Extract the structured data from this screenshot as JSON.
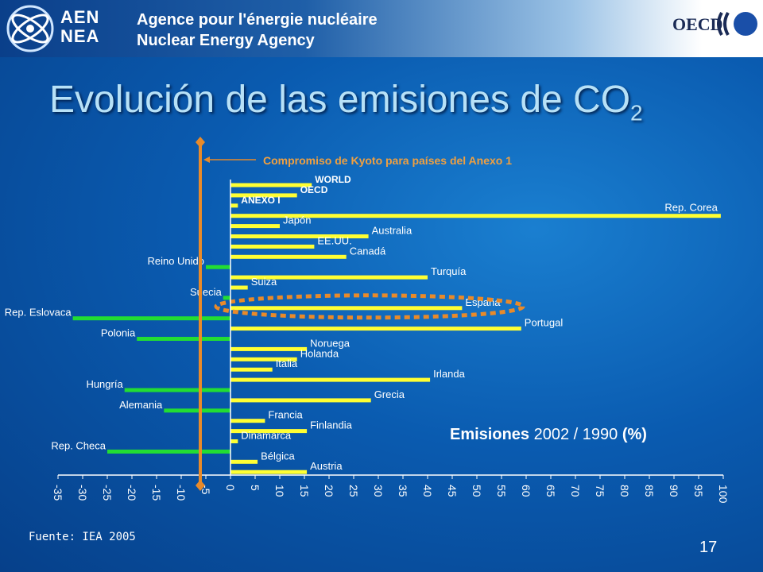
{
  "header": {
    "logo_text_line1": "AEN",
    "logo_text_line2": "NEA",
    "agency_fr": "Agence pour l'énergie nucléaire",
    "agency_en": "Nuclear Energy Agency",
    "oecd": "OECD"
  },
  "slide": {
    "title_main": "Evolución de las emisiones de CO",
    "title_sub": "2",
    "source": "Fuente: IEA 2005",
    "page_number": "17",
    "emissions_label_bold1": "Emisiones",
    "emissions_label_years": "2002 / 1990",
    "emissions_label_unit": "(%)"
  },
  "chart_data": {
    "type": "bar",
    "orientation": "horizontal",
    "annotation": "Compromiso de Kyoto para países del Anexo 1",
    "reference_line_value": -5,
    "xlim": [
      -35,
      100
    ],
    "ticks": [
      "-35",
      "-30",
      "-25",
      "-20",
      "-15",
      "-10",
      "-5",
      "0",
      "5",
      "10",
      "15",
      "20",
      "25",
      "30",
      "35",
      "40",
      "45",
      "50",
      "55",
      "60",
      "65",
      "70",
      "75",
      "80",
      "85",
      "90",
      "95",
      "100"
    ],
    "tick_values": [
      -35,
      -30,
      -25,
      -20,
      -15,
      -10,
      -5,
      0,
      5,
      10,
      15,
      20,
      25,
      30,
      35,
      40,
      45,
      50,
      55,
      60,
      65,
      70,
      75,
      80,
      85,
      90,
      95,
      100
    ],
    "highlighted_category": "España",
    "bars": [
      {
        "label": "WORLD",
        "value": 16.5
      },
      {
        "label": "OECD",
        "value": 13.5
      },
      {
        "label": "ANEXO I",
        "value": 1.5
      },
      {
        "label": "Rep. Corea",
        "value": 99.5
      },
      {
        "label": "Japón",
        "value": 10
      },
      {
        "label": "Australia",
        "value": 28
      },
      {
        "label": "EE.UU.",
        "value": 17
      },
      {
        "label": "Canadá",
        "value": 23.5
      },
      {
        "label": "Reino Unido",
        "value": -5
      },
      {
        "label": "Turquía",
        "value": 40
      },
      {
        "label": "Suiza",
        "value": 3.5
      },
      {
        "label": "Suecia",
        "value": -1.5
      },
      {
        "label": "España",
        "value": 47
      },
      {
        "label": "Rep. Eslovaca",
        "value": -32
      },
      {
        "label": "Portugal",
        "value": 59
      },
      {
        "label": "Polonia",
        "value": -19
      },
      {
        "label": "Noruega",
        "value": 15.5
      },
      {
        "label": "Holanda",
        "value": 13.5
      },
      {
        "label": "Italia",
        "value": 8.5
      },
      {
        "label": "Irlanda",
        "value": 40.5
      },
      {
        "label": "Hungría",
        "value": -21.5
      },
      {
        "label": "Grecia",
        "value": 28.5
      },
      {
        "label": "Alemania",
        "value": -13.5
      },
      {
        "label": "Francia",
        "value": 7
      },
      {
        "label": "Finlandia",
        "value": 15.5
      },
      {
        "label": "Dinamarca",
        "value": 1.5
      },
      {
        "label": "Rep. Checa",
        "value": -25
      },
      {
        "label": "Bélgica",
        "value": 5.5
      },
      {
        "label": "Austria",
        "value": 15.5
      }
    ],
    "colors": {
      "positive": "#ffff33",
      "negative": "#22dd33",
      "reference": "#e88a2a",
      "highlight": "#e88a2a"
    }
  }
}
